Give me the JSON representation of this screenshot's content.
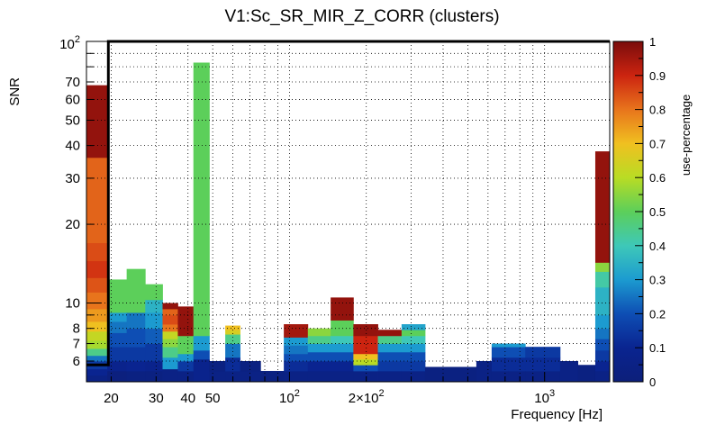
{
  "chart_data": {
    "type": "heatmap",
    "title": "V1:Sc_SR_MIR_Z_CORR (clusters)",
    "xlabel": "Frequency [Hz]",
    "ylabel": "SNR",
    "x_scale": "log",
    "y_scale": "log",
    "xlim": [
      16,
      1800
    ],
    "ylim": [
      5,
      100
    ],
    "x_ticks": [
      {
        "value": 20,
        "label": "20"
      },
      {
        "value": 30,
        "label": "30"
      },
      {
        "value": 40,
        "label": "40"
      },
      {
        "value": 50,
        "label": "50"
      },
      {
        "value": 100,
        "label": "10",
        "exp": "2"
      },
      {
        "value": 200,
        "label": "2×10",
        "exp": "2"
      },
      {
        "value": 1000,
        "label": "10",
        "exp": "3"
      }
    ],
    "y_ticks": [
      {
        "value": 6,
        "label": "6"
      },
      {
        "value": 7,
        "label": "7"
      },
      {
        "value": 8,
        "label": "8"
      },
      {
        "value": 10,
        "label": "10"
      },
      {
        "value": 20,
        "label": "20"
      },
      {
        "value": 30,
        "label": "30"
      },
      {
        "value": 40,
        "label": "40"
      },
      {
        "value": 50,
        "label": "50"
      },
      {
        "value": 60,
        "label": "60"
      },
      {
        "value": 70,
        "label": "70"
      },
      {
        "value": 100,
        "label": "10",
        "exp": "2"
      }
    ],
    "grid": true,
    "colorbar": {
      "label": "use-percentage",
      "range": [
        0,
        1
      ],
      "ticks": [
        "0",
        "0.1",
        "0.2",
        "0.3",
        "0.4",
        "0.5",
        "0.6",
        "0.7",
        "0.8",
        "0.9",
        "1"
      ]
    },
    "threshold_line": {
      "x_edge": 19.5,
      "lower_snr": 5.8,
      "upper_snr": 100
    },
    "columns": [
      {
        "f0": 16.0,
        "f1": 19.3,
        "top": 68,
        "bands": [
          [
            5.0,
            5.3,
            0.05
          ],
          [
            5.3,
            5.6,
            0.1
          ],
          [
            5.6,
            6.0,
            0.15
          ],
          [
            6.0,
            6.3,
            0.25
          ],
          [
            6.3,
            6.7,
            0.45
          ],
          [
            6.7,
            7.2,
            0.58
          ],
          [
            7.2,
            7.8,
            0.62
          ],
          [
            7.8,
            8.5,
            0.7
          ],
          [
            8.5,
            9.5,
            0.75
          ],
          [
            9.5,
            11.0,
            0.8
          ],
          [
            11.0,
            12.5,
            0.84
          ],
          [
            12.5,
            14.5,
            0.88
          ],
          [
            14.5,
            17.0,
            0.85
          ],
          [
            17.0,
            36.0,
            0.82
          ],
          [
            36.0,
            68.0,
            0.97
          ]
        ]
      },
      {
        "f0": 19.3,
        "f1": 23.0,
        "top": 12.3,
        "bands": [
          [
            5.0,
            5.5,
            0.02
          ],
          [
            5.5,
            6.0,
            0.08
          ],
          [
            6.0,
            6.8,
            0.15
          ],
          [
            6.8,
            7.7,
            0.2
          ],
          [
            7.7,
            8.5,
            0.25
          ],
          [
            8.5,
            9.2,
            0.3
          ],
          [
            9.2,
            12.3,
            0.5
          ]
        ]
      },
      {
        "f0": 23.0,
        "f1": 27.2,
        "top": 13.5,
        "bands": [
          [
            5.0,
            5.5,
            0.03
          ],
          [
            5.5,
            6.0,
            0.1
          ],
          [
            6.0,
            6.8,
            0.15
          ],
          [
            6.8,
            8.0,
            0.2
          ],
          [
            8.0,
            9.2,
            0.25
          ],
          [
            9.2,
            13.5,
            0.5
          ]
        ]
      },
      {
        "f0": 27.2,
        "f1": 31.8,
        "top": 11.8,
        "bands": [
          [
            5.0,
            5.5,
            0.03
          ],
          [
            5.5,
            6.0,
            0.08
          ],
          [
            6.0,
            7.0,
            0.15
          ],
          [
            7.0,
            8.0,
            0.22
          ],
          [
            8.0,
            9.2,
            0.3
          ],
          [
            9.2,
            10.3,
            0.35
          ],
          [
            10.3,
            11.8,
            0.5
          ]
        ]
      },
      {
        "f0": 31.8,
        "f1": 36.5,
        "top": 10.0,
        "bands": [
          [
            5.0,
            5.6,
            0.05
          ],
          [
            5.6,
            6.2,
            0.3
          ],
          [
            6.2,
            6.8,
            0.45
          ],
          [
            6.8,
            7.3,
            0.55
          ],
          [
            7.3,
            7.8,
            0.62
          ],
          [
            7.8,
            8.3,
            0.8
          ],
          [
            8.3,
            9.0,
            0.85
          ],
          [
            9.0,
            9.5,
            0.82
          ],
          [
            9.5,
            10.0,
            0.97
          ]
        ]
      },
      {
        "f0": 36.5,
        "f1": 42.0,
        "top": 9.7,
        "bands": [
          [
            5.0,
            5.5,
            0.05
          ],
          [
            5.5,
            6.0,
            0.15
          ],
          [
            6.0,
            6.4,
            0.3
          ],
          [
            6.4,
            7.5,
            0.5
          ],
          [
            7.5,
            9.7,
            0.97
          ]
        ]
      },
      {
        "f0": 42.0,
        "f1": 48.5,
        "top": 83,
        "bands": [
          [
            5.0,
            6.1,
            0.08
          ],
          [
            6.1,
            6.6,
            0.2
          ],
          [
            6.6,
            7.5,
            0.3
          ],
          [
            7.5,
            83.0,
            0.5
          ]
        ]
      },
      {
        "f0": 48.5,
        "f1": 56.0,
        "top": 6.0,
        "bands": [
          [
            5.0,
            5.5,
            0.05
          ],
          [
            5.5,
            6.0,
            0.03
          ]
        ]
      },
      {
        "f0": 56.0,
        "f1": 64.0,
        "top": 8.2,
        "bands": [
          [
            5.0,
            5.5,
            0.05
          ],
          [
            5.5,
            6.2,
            0.12
          ],
          [
            6.2,
            7.0,
            0.25
          ],
          [
            7.0,
            7.6,
            0.45
          ],
          [
            7.6,
            7.9,
            0.65
          ],
          [
            7.9,
            8.2,
            0.7
          ]
        ]
      },
      {
        "f0": 64.0,
        "f1": 77.0,
        "top": 6.0,
        "bands": [
          [
            5.0,
            5.5,
            0.05
          ],
          [
            5.5,
            6.0,
            0.03
          ]
        ]
      },
      {
        "f0": 77.0,
        "f1": 95.0,
        "top": 5.5,
        "bands": [
          [
            5.0,
            5.5,
            0.03
          ]
        ]
      },
      {
        "f0": 95.0,
        "f1": 118.0,
        "top": 8.3,
        "bands": [
          [
            5.0,
            5.5,
            0.05
          ],
          [
            5.5,
            6.0,
            0.12
          ],
          [
            6.0,
            6.4,
            0.2
          ],
          [
            6.4,
            6.9,
            0.25
          ],
          [
            6.9,
            7.4,
            0.3
          ],
          [
            7.4,
            8.3,
            0.95
          ]
        ]
      },
      {
        "f0": 118.0,
        "f1": 145.0,
        "top": 8.0,
        "bands": [
          [
            5.0,
            5.5,
            0.05
          ],
          [
            5.5,
            6.0,
            0.1
          ],
          [
            6.0,
            6.5,
            0.2
          ],
          [
            6.5,
            7.0,
            0.3
          ],
          [
            7.0,
            7.5,
            0.45
          ],
          [
            7.5,
            8.0,
            0.55
          ]
        ]
      },
      {
        "f0": 145.0,
        "f1": 178.0,
        "top": 10.5,
        "bands": [
          [
            5.0,
            5.5,
            0.05
          ],
          [
            5.5,
            6.0,
            0.1
          ],
          [
            6.0,
            6.5,
            0.2
          ],
          [
            6.5,
            7.0,
            0.3
          ],
          [
            7.0,
            7.5,
            0.4
          ],
          [
            7.5,
            8.6,
            0.5
          ],
          [
            8.6,
            10.5,
            0.97
          ]
        ]
      },
      {
        "f0": 178.0,
        "f1": 222.0,
        "top": 8.3,
        "bands": [
          [
            5.0,
            5.5,
            0.05
          ],
          [
            5.5,
            5.8,
            0.2
          ],
          [
            5.8,
            6.1,
            0.6
          ],
          [
            6.1,
            6.4,
            0.7
          ],
          [
            6.4,
            7.5,
            0.9
          ],
          [
            7.5,
            8.3,
            0.97
          ]
        ]
      },
      {
        "f0": 222.0,
        "f1": 275.0,
        "top": 7.9,
        "bands": [
          [
            5.0,
            5.5,
            0.05
          ],
          [
            5.5,
            6.0,
            0.15
          ],
          [
            6.0,
            6.5,
            0.2
          ],
          [
            6.5,
            7.0,
            0.3
          ],
          [
            7.0,
            7.5,
            0.45
          ],
          [
            7.5,
            7.9,
            0.97
          ]
        ]
      },
      {
        "f0": 275.0,
        "f1": 340.0,
        "top": 8.3,
        "bands": [
          [
            5.0,
            5.5,
            0.05
          ],
          [
            5.5,
            6.0,
            0.15
          ],
          [
            6.0,
            6.5,
            0.2
          ],
          [
            6.5,
            7.0,
            0.3
          ],
          [
            7.0,
            7.5,
            0.4
          ],
          [
            7.5,
            7.9,
            0.5
          ],
          [
            7.9,
            8.3,
            0.32
          ]
        ]
      },
      {
        "f0": 340.0,
        "f1": 540.0,
        "top": 5.7,
        "bands": [
          [
            5.0,
            5.7,
            0.03
          ]
        ]
      },
      {
        "f0": 540.0,
        "f1": 620.0,
        "top": 6.0,
        "bands": [
          [
            5.0,
            6.0,
            0.05
          ]
        ]
      },
      {
        "f0": 620.0,
        "f1": 720.0,
        "top": 7.0,
        "bands": [
          [
            5.0,
            5.5,
            0.05
          ],
          [
            5.5,
            6.2,
            0.12
          ],
          [
            6.2,
            6.8,
            0.2
          ],
          [
            6.8,
            7.0,
            0.3
          ]
        ]
      },
      {
        "f0": 720.0,
        "f1": 840.0,
        "top": 7.0,
        "bands": [
          [
            5.0,
            5.5,
            0.05
          ],
          [
            5.5,
            6.2,
            0.12
          ],
          [
            6.2,
            6.8,
            0.2
          ],
          [
            6.8,
            7.0,
            0.3
          ]
        ]
      },
      {
        "f0": 840.0,
        "f1": 990.0,
        "top": 6.8,
        "bands": [
          [
            5.0,
            5.5,
            0.05
          ],
          [
            5.5,
            6.2,
            0.12
          ],
          [
            6.2,
            6.8,
            0.15
          ]
        ]
      },
      {
        "f0": 990.0,
        "f1": 1150.0,
        "top": 6.8,
        "bands": [
          [
            5.0,
            5.5,
            0.05
          ],
          [
            5.5,
            6.2,
            0.12
          ],
          [
            6.2,
            6.8,
            0.15
          ]
        ]
      },
      {
        "f0": 1150.0,
        "f1": 1350.0,
        "top": 6.0,
        "bands": [
          [
            5.0,
            6.0,
            0.05
          ]
        ]
      },
      {
        "f0": 1350.0,
        "f1": 1580.0,
        "top": 5.8,
        "bands": [
          [
            5.0,
            5.8,
            0.03
          ]
        ]
      },
      {
        "f0": 1580.0,
        "f1": 1800.0,
        "top": 38,
        "bands": [
          [
            5.0,
            5.5,
            0.05
          ],
          [
            5.5,
            6.0,
            0.1
          ],
          [
            6.0,
            6.6,
            0.15
          ],
          [
            6.6,
            7.3,
            0.2
          ],
          [
            7.3,
            8.0,
            0.25
          ],
          [
            8.0,
            9.0,
            0.3
          ],
          [
            9.0,
            11.5,
            0.35
          ],
          [
            11.5,
            13.2,
            0.42
          ],
          [
            13.2,
            14.3,
            0.55
          ],
          [
            14.3,
            38.0,
            0.97
          ]
        ]
      }
    ]
  }
}
